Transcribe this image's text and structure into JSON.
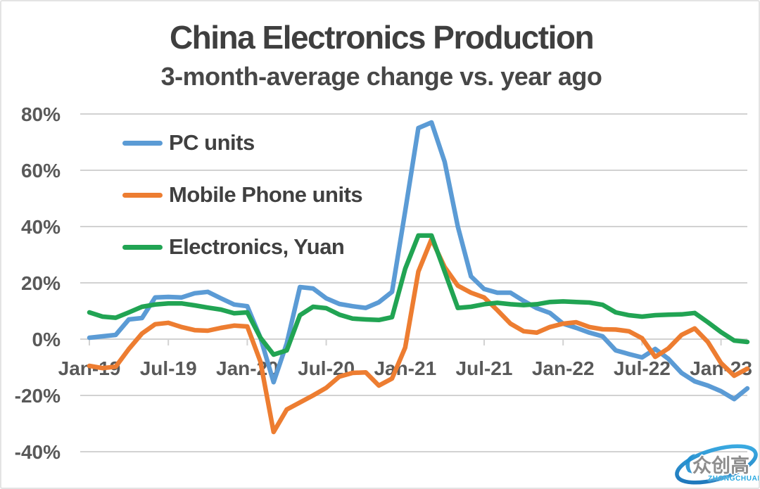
{
  "title": "China Electronics Production",
  "subtitle": "3-month-average change vs. year ago",
  "colors": {
    "title_text": "#3f3f3f",
    "axis_text": "#595959",
    "gridline": "#d2d2d2",
    "pc_units": "#5b9bd5",
    "mobile_phone_units": "#ed7d31",
    "electronics_yuan": "#21a453",
    "background": "#ffffff"
  },
  "legend": [
    {
      "label": "PC units",
      "color": "#5b9bd5"
    },
    {
      "label": "Mobile Phone units",
      "color": "#ed7d31"
    },
    {
      "label": "Electronics, Yuan",
      "color": "#21a453"
    }
  ],
  "watermark": {
    "cjk": "众创高",
    "latin": "ZHONGCHUANGGAO",
    "swoosh_color_light": "#3fb3e8",
    "swoosh_color_dark": "#1a6fb5",
    "cjk_color": "#8d8d8d",
    "latin_color": "#29a9e1"
  },
  "chart_data": {
    "type": "line",
    "title": "China Electronics Production",
    "subtitle": "3-month-average change vs. year ago",
    "unit": "%",
    "grid": true,
    "legend_position": "inside-top-left",
    "ylim": [
      -40,
      80
    ],
    "ytick_interval": 20,
    "ytick_labels": [
      "80%",
      "60%",
      "40%",
      "20%",
      "0%",
      "-20%",
      "-40%"
    ],
    "xtick_labels": [
      "Jan-19",
      "Jul-19",
      "Jan-20",
      "Jul-20",
      "Jan-21",
      "Jul-21",
      "Jan-22",
      "Jul-22",
      "Jan-23"
    ],
    "xtick_every": 6,
    "x": [
      "Jan-19",
      "Feb-19",
      "Mar-19",
      "Apr-19",
      "May-19",
      "Jun-19",
      "Jul-19",
      "Aug-19",
      "Sep-19",
      "Oct-19",
      "Nov-19",
      "Dec-19",
      "Jan-20",
      "Feb-20",
      "Mar-20",
      "Apr-20",
      "May-20",
      "Jun-20",
      "Jul-20",
      "Aug-20",
      "Sep-20",
      "Oct-20",
      "Nov-20",
      "Dec-20",
      "Jan-21",
      "Feb-21",
      "Mar-21",
      "Apr-21",
      "May-21",
      "Jun-21",
      "Jul-21",
      "Aug-21",
      "Sep-21",
      "Oct-21",
      "Nov-21",
      "Dec-21",
      "Jan-22",
      "Feb-22",
      "Mar-22",
      "Apr-22",
      "May-22",
      "Jun-22",
      "Jul-22",
      "Aug-22",
      "Sep-22",
      "Oct-22",
      "Nov-22",
      "Dec-22",
      "Jan-23",
      "Feb-23",
      "Mar-23"
    ],
    "series": [
      {
        "name": "PC units",
        "color": "#5b9bd5",
        "values": [
          0.5,
          1,
          1.5,
          7,
          7.5,
          14.8,
          15,
          14.8,
          16.3,
          16.8,
          14.5,
          12.3,
          11.7,
          0.5,
          -15.3,
          -1.5,
          18.5,
          18,
          14.5,
          12.5,
          11.7,
          11.1,
          13.1,
          16.8,
          45.5,
          75,
          77,
          63,
          40,
          22.3,
          17.8,
          16.5,
          16.5,
          13.6,
          11,
          9.3,
          5.5,
          4,
          2.3,
          1,
          -4,
          -5.3,
          -6.5,
          -3.5,
          -7,
          -12,
          -15,
          -16.5,
          -18.5,
          -21.3,
          -17.5
        ]
      },
      {
        "name": "Mobile Phone units",
        "color": "#ed7d31",
        "values": [
          -9.5,
          -10.3,
          -9.8,
          -3.5,
          2,
          5.3,
          5.8,
          4.3,
          3.2,
          3,
          4,
          4.8,
          4.5,
          -8,
          -33,
          -25,
          -22.5,
          -20,
          -17.3,
          -13.3,
          -12,
          -11.8,
          -16.5,
          -14,
          -3,
          24,
          35.5,
          25.6,
          19,
          16.5,
          14.8,
          10.3,
          5.5,
          2.8,
          2.3,
          4.3,
          5.5,
          6,
          4.3,
          3.5,
          3.4,
          2.8,
          0.3,
          -6.3,
          -3.3,
          1.5,
          3.8,
          -1,
          -8.5,
          -13,
          -10.5
        ]
      },
      {
        "name": "Electronics, Yuan",
        "color": "#21a453",
        "values": [
          9.5,
          8,
          7.6,
          9.5,
          11.5,
          12.3,
          12.7,
          12.7,
          12,
          11.2,
          10.5,
          9.2,
          9.5,
          0.5,
          -5.5,
          -4,
          8.5,
          11.5,
          11,
          8.7,
          7.3,
          7,
          6.8,
          7.8,
          25,
          36.8,
          36.8,
          24,
          11.1,
          11.5,
          12.4,
          12.9,
          12.4,
          12.1,
          12.4,
          13.2,
          13.4,
          13.2,
          13,
          12.2,
          9.5,
          8.5,
          8,
          8.5,
          8.7,
          8.8,
          9.3,
          6,
          2.5,
          -0.5,
          -1
        ]
      }
    ]
  }
}
